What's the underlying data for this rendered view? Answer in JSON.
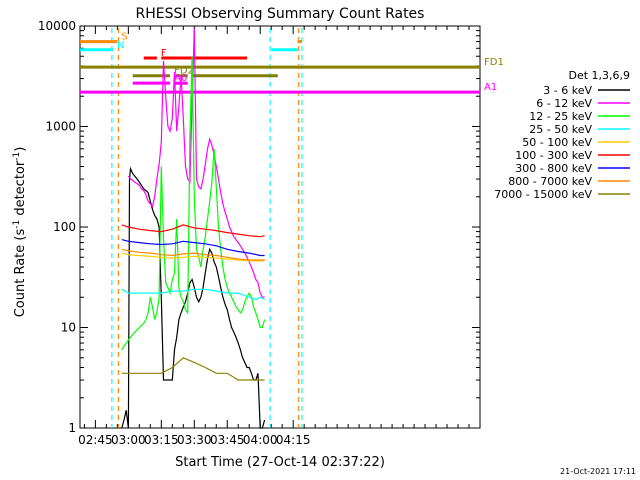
{
  "chart_data": {
    "type": "line",
    "title": "RHESSI Observing Summary Count Rates",
    "xlabel": "Start Time (27-Oct-14 02:37:22)",
    "ylabel_main": "Count Rate (s",
    "ylabel_sup1": "-1",
    "ylabel_mid": " detector",
    "ylabel_sup2": "-1",
    "ylabel_end": ")",
    "xlim": [
      38,
      220
    ],
    "ylim": [
      1,
      10000
    ],
    "yscale": "log",
    "x_ticks": [
      {
        "pos": 45,
        "label": "02:45"
      },
      {
        "pos": 60,
        "label": "03:00"
      },
      {
        "pos": 75,
        "label": "03:15"
      },
      {
        "pos": 90,
        "label": "03:30"
      },
      {
        "pos": 105,
        "label": "03:45"
      },
      {
        "pos": 120,
        "label": "04:00"
      },
      {
        "pos": 135,
        "label": "04:15"
      }
    ],
    "y_ticks": [
      {
        "value": 1,
        "label": "1"
      },
      {
        "value": 10,
        "label": "10"
      },
      {
        "value": 100,
        "label": "100"
      },
      {
        "value": 1000,
        "label": "1000"
      },
      {
        "value": 10000,
        "label": "10000"
      }
    ],
    "legend_title": "Det 1,3,6,9",
    "legend_placement": "right",
    "series": [
      {
        "name": "3 - 6 keV",
        "color": "#000000",
        "x": [
          57,
          58,
          59,
          60,
          60.5,
          61,
          62,
          63,
          64,
          65,
          66,
          67,
          68,
          69,
          70,
          71,
          72,
          73,
          74,
          75,
          76,
          77,
          78,
          79,
          80,
          81,
          82,
          83,
          84,
          85,
          86,
          87,
          88,
          89,
          90,
          91,
          92,
          93,
          94,
          95,
          96,
          97,
          98,
          99,
          100,
          101,
          102,
          103,
          104,
          105,
          106,
          107,
          108,
          109,
          110,
          111,
          112,
          113,
          114,
          115,
          116,
          117,
          118,
          119,
          120,
          121,
          122
        ],
        "y": [
          1,
          1.2,
          1.5,
          1,
          300,
          380,
          340,
          320,
          300,
          280,
          260,
          240,
          230,
          220,
          180,
          150,
          130,
          120,
          100,
          20,
          3,
          3,
          3,
          3,
          3,
          6,
          8,
          12,
          14,
          16,
          18,
          22,
          28,
          30,
          25,
          20,
          18,
          20,
          25,
          35,
          48,
          60,
          55,
          45,
          40,
          32,
          25,
          20,
          17,
          15,
          12,
          10,
          9,
          8,
          7,
          6,
          5,
          4.5,
          4,
          4,
          3.5,
          3,
          3,
          3.5,
          1,
          1,
          1.2
        ]
      },
      {
        "name": "6 - 12 keV",
        "color": "#ff00ff",
        "x": [
          60,
          61,
          62,
          63,
          64,
          65,
          66,
          67,
          68,
          69,
          70,
          71,
          72,
          73,
          74,
          75,
          76,
          77,
          78,
          79,
          80,
          81,
          82,
          83,
          84,
          85,
          86,
          87,
          88,
          89,
          90,
          91,
          92,
          93,
          94,
          95,
          96,
          97,
          98,
          99,
          100,
          101,
          102,
          103,
          104,
          105,
          106,
          107,
          108,
          109,
          110,
          111,
          112,
          113,
          114,
          115,
          116,
          117,
          118,
          119,
          120,
          121,
          122
        ],
        "y": [
          320,
          300,
          290,
          280,
          270,
          260,
          240,
          230,
          210,
          180,
          170,
          160,
          200,
          300,
          420,
          700,
          4500,
          2000,
          1000,
          900,
          1200,
          3500,
          900,
          1600,
          3200,
          1200,
          400,
          300,
          280,
          1800,
          9500,
          300,
          250,
          240,
          300,
          420,
          600,
          750,
          650,
          520,
          400,
          300,
          220,
          170,
          140,
          120,
          100,
          90,
          80,
          75,
          70,
          65,
          60,
          55,
          50,
          45,
          40,
          35,
          30,
          28,
          22,
          20,
          20
        ]
      },
      {
        "name": "12 - 25 keV",
        "color": "#00ff00",
        "x": [
          57,
          58,
          59,
          60,
          61,
          62,
          63,
          64,
          65,
          66,
          67,
          68,
          69,
          70,
          71,
          72,
          73,
          74,
          75,
          76,
          77,
          78,
          79,
          80,
          81,
          82,
          83,
          84,
          85,
          86,
          87,
          88,
          89,
          90,
          91,
          92,
          93,
          94,
          95,
          96,
          97,
          98,
          99,
          100,
          101,
          102,
          103,
          104,
          105,
          106,
          107,
          108,
          109,
          110,
          111,
          112,
          113,
          114,
          115,
          116,
          117,
          118,
          119,
          120,
          121,
          122
        ],
        "y": [
          6,
          6.5,
          7,
          7.5,
          8,
          8.5,
          9,
          9.5,
          10,
          10.5,
          11,
          12,
          14,
          20,
          16,
          12,
          14,
          20,
          400,
          80,
          28,
          25,
          22,
          30,
          35,
          120,
          25,
          20,
          18,
          15,
          14,
          800,
          5000,
          200,
          60,
          50,
          40,
          60,
          80,
          120,
          180,
          280,
          600,
          250,
          100,
          60,
          40,
          30,
          25,
          22,
          20,
          18,
          16,
          15,
          14,
          15,
          18,
          20,
          22,
          20,
          16,
          14,
          12,
          10,
          10,
          12
        ]
      },
      {
        "name": "25 - 50 keV",
        "color": "#00ffff",
        "x": [
          57,
          60,
          65,
          70,
          75,
          80,
          85,
          90,
          95,
          100,
          105,
          110,
          115,
          118,
          120,
          122
        ],
        "y": [
          24,
          22,
          22,
          22,
          22,
          23,
          23,
          24,
          24,
          23,
          22,
          22,
          20,
          19,
          20,
          19
        ]
      },
      {
        "name": "50 - 100 keV",
        "color": "#ffcc00",
        "x": [
          57,
          60,
          65,
          70,
          75,
          80,
          85,
          90,
          95,
          100,
          105,
          110,
          115,
          120,
          122
        ],
        "y": [
          55,
          53,
          52,
          51,
          50,
          49,
          50,
          51,
          50,
          49,
          48,
          47,
          46,
          46,
          46
        ]
      },
      {
        "name": "100 - 300 keV",
        "color": "#ff0000",
        "x": [
          57,
          60,
          65,
          70,
          75,
          80,
          85,
          90,
          95,
          100,
          105,
          110,
          115,
          120,
          122
        ],
        "y": [
          105,
          100,
          95,
          92,
          90,
          95,
          105,
          98,
          95,
          92,
          88,
          85,
          82,
          80,
          82
        ]
      },
      {
        "name": "300 - 800 keV",
        "color": "#0000ff",
        "x": [
          57,
          60,
          65,
          70,
          75,
          80,
          85,
          90,
          95,
          100,
          105,
          110,
          115,
          120,
          122
        ],
        "y": [
          75,
          72,
          70,
          68,
          67,
          68,
          72,
          70,
          68,
          65,
          60,
          57,
          55,
          52,
          52
        ]
      },
      {
        "name": "800 - 7000 keV",
        "color": "#ff8800",
        "x": [
          57,
          60,
          65,
          70,
          75,
          80,
          85,
          90,
          95,
          100,
          105,
          110,
          115,
          120,
          122
        ],
        "y": [
          60,
          58,
          56,
          55,
          53,
          52,
          54,
          55,
          53,
          52,
          50,
          48,
          47,
          47,
          47
        ]
      },
      {
        "name": "7000 - 15000 keV",
        "color": "#8b8000",
        "x": [
          57,
          60,
          65,
          70,
          75,
          80,
          85,
          90,
          95,
          100,
          105,
          110,
          115,
          120,
          122
        ],
        "y": [
          3.5,
          3.5,
          3.5,
          3.5,
          3.5,
          4,
          5,
          4.5,
          4,
          3.5,
          3.5,
          3,
          3,
          3,
          3
        ]
      }
    ],
    "flags": [
      {
        "label": "S",
        "color": "#ff8800",
        "value": 7000,
        "segments": [
          [
            38,
            55
          ],
          [
            137,
            139
          ]
        ]
      },
      {
        "label": "N",
        "color": "#00ffff",
        "value": 5800,
        "segments": [
          [
            38,
            53
          ],
          [
            125,
            137
          ]
        ]
      },
      {
        "label": "F",
        "color": "#ff0000",
        "value": 4800,
        "segments": [
          [
            67,
            73
          ],
          [
            75,
            114
          ]
        ]
      },
      {
        "label": "FD1",
        "color": "#8b8000",
        "value": 3900,
        "segments": [
          [
            38,
            220
          ]
        ]
      },
      {
        "label": "FD2",
        "color": "#808000",
        "value": 3200,
        "segments": [
          [
            62,
            79
          ],
          [
            81,
            87
          ],
          [
            89,
            128
          ]
        ]
      },
      {
        "label": "A0",
        "color": "#ff00ff",
        "value": 2700,
        "segments": [
          [
            62,
            79
          ],
          [
            81,
            87
          ]
        ]
      },
      {
        "label": "A1",
        "color": "#ff00ff",
        "value": 2200,
        "segments": [
          [
            38,
            220
          ]
        ]
      }
    ],
    "vlines": [
      {
        "x": 52.5,
        "color": "#00ffff"
      },
      {
        "x": 55.5,
        "color": "#ff8800"
      },
      {
        "x": 124.5,
        "color": "#00ffff"
      },
      {
        "x": 137.5,
        "color": "#ff8800"
      },
      {
        "x": 139,
        "color": "#00ffff"
      }
    ]
  },
  "footer_date": "21-Oct-2021 17:11"
}
